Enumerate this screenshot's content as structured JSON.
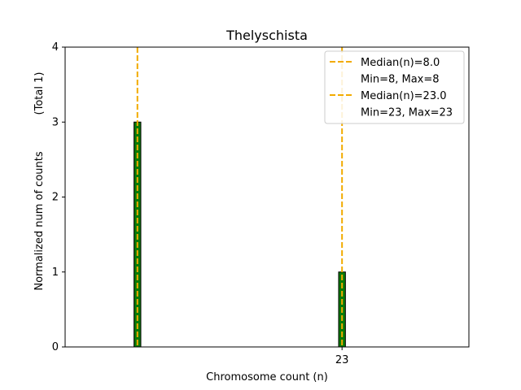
{
  "chart_data": {
    "type": "bar",
    "title": "Thelyschista",
    "xlabel": "Chromosome count (n)",
    "ylabel": "Normalized num of counts",
    "ylabel_suffix": "(Total 1)",
    "ylim": [
      0,
      4
    ],
    "xlim": [
      2.7,
      32.3
    ],
    "yticks": [
      0,
      1,
      2,
      3,
      4
    ],
    "xticks": [
      23
    ],
    "bars": [
      {
        "x": 8,
        "value": 3
      },
      {
        "x": 23,
        "value": 1
      }
    ],
    "bar_width": 0.5,
    "baseline_segment": [
      2.7,
      10.2
    ],
    "medians": [
      {
        "x": 8,
        "label": "Median(n)=8.0",
        "sublabel": "Min=8, Max=8"
      },
      {
        "x": 23,
        "label": "Median(n)=23.0",
        "sublabel": "Min=23, Max=23"
      }
    ],
    "legend_position": "top-right",
    "colors": {
      "bar_fill": "#087a08",
      "bar_edge": "#000000",
      "median_line": "#f2ab00"
    }
  }
}
